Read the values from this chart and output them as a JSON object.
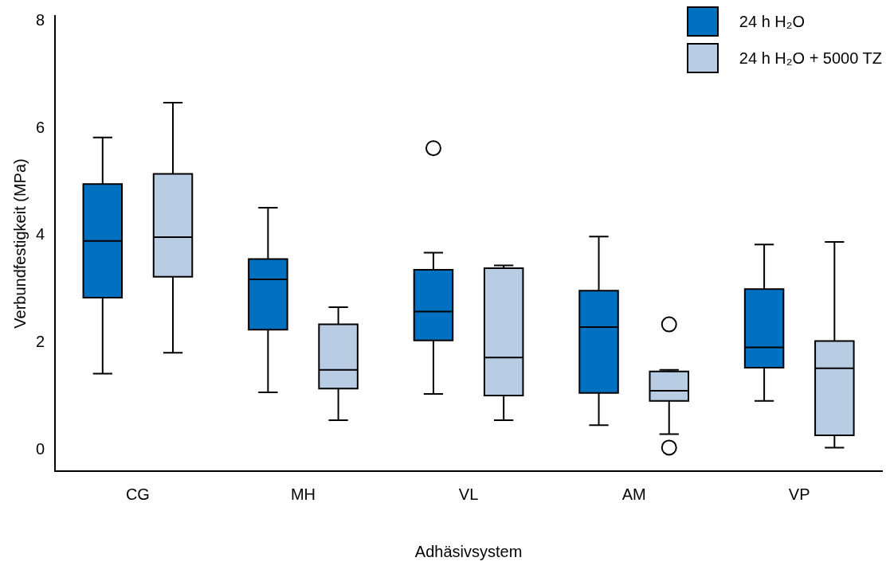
{
  "chart_data": {
    "type": "box",
    "xlabel": "Adhäsivsystem",
    "ylabel": "Verbundfestigkeit (MPa)",
    "categories": [
      "CG",
      "MH",
      "VL",
      "AM",
      "VP"
    ],
    "ylim": [
      -0.4,
      8.1
    ],
    "yticks": [
      0,
      2,
      4,
      6,
      8
    ],
    "grid": false,
    "legend": "top right",
    "series": [
      {
        "name": "24 h H₂O",
        "color": "#0070c0",
        "boxes": [
          {
            "low": 1.42,
            "q1": 2.84,
            "median": 3.9,
            "q3": 4.96,
            "high": 5.83
          },
          {
            "low": 1.07,
            "q1": 2.24,
            "median": 3.18,
            "q3": 3.56,
            "high": 4.52
          },
          {
            "low": 1.04,
            "q1": 2.04,
            "median": 2.58,
            "q3": 3.36,
            "high": 3.68,
            "outliers": [
              5.63
            ]
          },
          {
            "low": 0.46,
            "q1": 1.06,
            "median": 2.29,
            "q3": 2.97,
            "high": 3.98
          },
          {
            "low": 0.91,
            "q1": 1.53,
            "median": 1.91,
            "q3": 3.0,
            "high": 3.83
          }
        ]
      },
      {
        "name": "24 h H₂O + 5000 TZ",
        "color": "#b8cce4",
        "boxes": [
          {
            "low": 1.81,
            "q1": 3.23,
            "median": 3.97,
            "q3": 5.15,
            "high": 6.48
          },
          {
            "low": 0.55,
            "q1": 1.14,
            "median": 1.49,
            "q3": 2.34,
            "high": 2.66
          },
          {
            "low": 0.55,
            "q1": 1.01,
            "median": 1.72,
            "q3": 3.39,
            "high": 3.44
          },
          {
            "low": 0.29,
            "q1": 0.91,
            "median": 1.1,
            "q3": 1.46,
            "high": 1.49,
            "outliers": [
              2.34,
              0.04
            ]
          },
          {
            "low": 0.04,
            "q1": 0.27,
            "median": 1.52,
            "q3": 2.03,
            "high": 3.88
          }
        ]
      }
    ]
  }
}
